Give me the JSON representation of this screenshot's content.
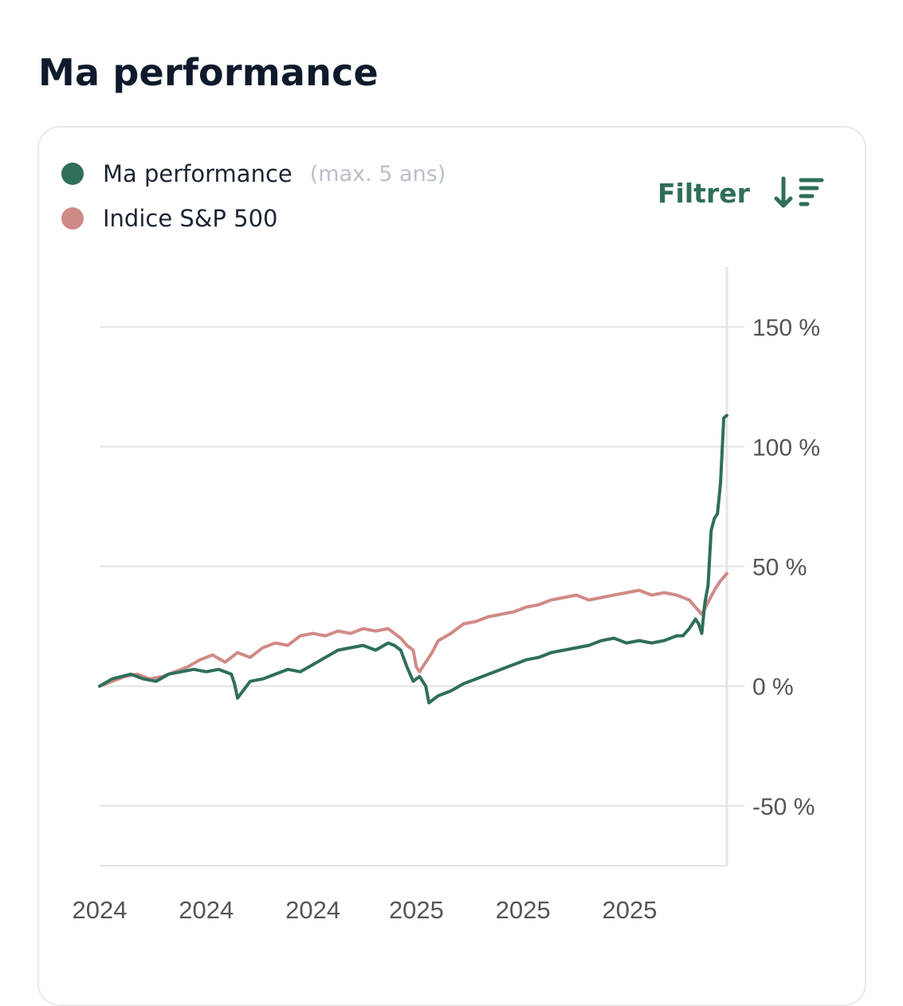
{
  "page": {
    "title": "Ma performance"
  },
  "legend": {
    "items": [
      {
        "label": "Ma performance",
        "note": "(max. 5 ans)",
        "color": "#2f6e5a"
      },
      {
        "label": "Indice S&P 500",
        "note": "",
        "color": "#d08a86"
      }
    ]
  },
  "filter": {
    "label": "Filtrer",
    "icon": "sort-descending-icon",
    "color": "#2f6e5a"
  },
  "colors": {
    "grid": "#e4e4e4",
    "axis_text": "#555555",
    "card_border": "#e6e8ec"
  },
  "chart_data": {
    "type": "line",
    "title": "",
    "xlabel": "",
    "ylabel": "",
    "x_tick_labels": [
      "2024",
      "2024",
      "2024",
      "2025",
      "2025",
      "2025"
    ],
    "x_tick_positions": [
      0,
      0.17,
      0.34,
      0.505,
      0.675,
      0.845
    ],
    "y_ticks": [
      {
        "value": 150,
        "label": "150 %"
      },
      {
        "value": 100,
        "label": "100 %"
      },
      {
        "value": 50,
        "label": "50 %"
      },
      {
        "value": 0,
        "label": "0 %"
      },
      {
        "value": -50,
        "label": "-50 %"
      }
    ],
    "ylim": [
      -75,
      175
    ],
    "grid": true,
    "legend_position": "top-left",
    "series": [
      {
        "name": "Ma performance",
        "color": "#2f6e5a",
        "x": [
          0,
          0.02,
          0.035,
          0.05,
          0.07,
          0.09,
          0.11,
          0.13,
          0.15,
          0.17,
          0.19,
          0.21,
          0.215,
          0.22,
          0.24,
          0.26,
          0.28,
          0.3,
          0.32,
          0.34,
          0.36,
          0.38,
          0.4,
          0.42,
          0.44,
          0.46,
          0.47,
          0.48,
          0.49,
          0.5,
          0.51,
          0.52,
          0.525,
          0.53,
          0.54,
          0.56,
          0.58,
          0.6,
          0.62,
          0.64,
          0.66,
          0.68,
          0.7,
          0.72,
          0.74,
          0.76,
          0.78,
          0.8,
          0.82,
          0.84,
          0.86,
          0.88,
          0.9,
          0.92,
          0.93,
          0.94,
          0.95,
          0.955,
          0.96,
          0.965,
          0.97,
          0.975,
          0.98,
          0.985,
          0.99,
          0.995,
          1.0
        ],
        "y": [
          0,
          3,
          4,
          5,
          3,
          2,
          5,
          6,
          7,
          6,
          7,
          5,
          1,
          -5,
          2,
          3,
          5,
          7,
          6,
          9,
          12,
          15,
          16,
          17,
          15,
          18,
          17,
          15,
          8,
          2,
          4,
          0,
          -7,
          -6,
          -4,
          -2,
          1,
          3,
          5,
          7,
          9,
          11,
          12,
          14,
          15,
          16,
          17,
          19,
          20,
          18,
          19,
          18,
          19,
          21,
          21,
          24,
          28,
          26,
          22,
          35,
          42,
          65,
          70,
          72,
          85,
          112,
          113
        ]
      },
      {
        "name": "Indice S&P 500",
        "color": "#d08a86",
        "x": [
          0,
          0.02,
          0.04,
          0.06,
          0.08,
          0.1,
          0.12,
          0.14,
          0.16,
          0.18,
          0.2,
          0.22,
          0.24,
          0.26,
          0.28,
          0.3,
          0.32,
          0.34,
          0.36,
          0.38,
          0.4,
          0.42,
          0.44,
          0.46,
          0.47,
          0.48,
          0.49,
          0.5,
          0.505,
          0.51,
          0.52,
          0.53,
          0.54,
          0.56,
          0.58,
          0.6,
          0.62,
          0.64,
          0.66,
          0.68,
          0.7,
          0.72,
          0.74,
          0.76,
          0.78,
          0.8,
          0.82,
          0.84,
          0.86,
          0.88,
          0.9,
          0.92,
          0.94,
          0.95,
          0.96,
          0.97,
          0.98,
          0.99,
          1.0
        ],
        "y": [
          0,
          2,
          4,
          5,
          3,
          4,
          6,
          8,
          11,
          13,
          10,
          14,
          12,
          16,
          18,
          17,
          21,
          22,
          21,
          23,
          22,
          24,
          23,
          24,
          22,
          20,
          17,
          15,
          8,
          6,
          10,
          14,
          19,
          22,
          26,
          27,
          29,
          30,
          31,
          33,
          34,
          36,
          37,
          38,
          36,
          37,
          38,
          39,
          40,
          38,
          39,
          38,
          36,
          33,
          30,
          35,
          40,
          44,
          47
        ]
      }
    ]
  }
}
